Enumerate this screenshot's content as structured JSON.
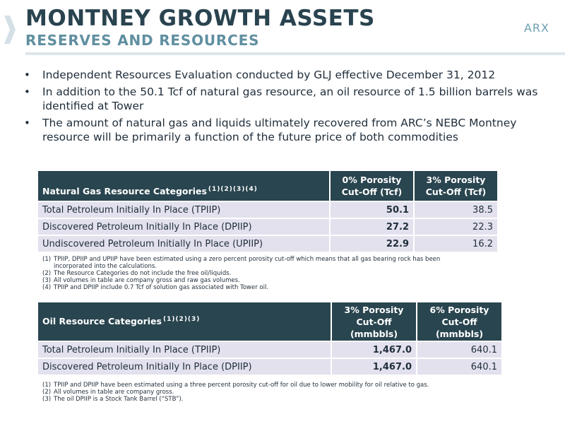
{
  "header": {
    "title": "MONTNEY GROWTH ASSETS",
    "subtitle": "RESERVES AND RESOURCES",
    "logo_text": "ARX"
  },
  "bullets": [
    "Independent Resources Evaluation conducted by GLJ effective December 31, 2012",
    "In addition to the 50.1 Tcf of natural gas resource, an oil resource of 1.5 billion barrels was identified at Tower",
    "The amount of natural gas and liquids ultimately recovered from ARC’s NEBC Montney resource will be primarily a function of the future price of both commodities"
  ],
  "gas_table": {
    "header_label": "Natural Gas Resource Categories",
    "header_refs": "(1)(2)(3)(4)",
    "col1": "0% Porosity Cut-Off (Tcf)",
    "col2": "3% Porosity Cut-Off (Tcf)",
    "rows": [
      {
        "label": "Total Petroleum Initially In Place (TPIIP)",
        "v1": "50.1",
        "v2": "38.5"
      },
      {
        "label": "Discovered Petroleum Initially In Place (DPIIP)",
        "v1": "27.2",
        "v2": "22.3"
      },
      {
        "label": "Undiscovered Petroleum Initially In Place (UPIIP)",
        "v1": "22.9",
        "v2": "16.2"
      }
    ],
    "notes": [
      {
        "num": "(1)",
        "text": "TPIIP, DPIIP and UPIIP have been estimated using a zero percent porosity cut-off which means that all gas bearing rock has been incorporated into the calculations."
      },
      {
        "num": "(2)",
        "text": "The Resource Categories do not include the free oil/liquids."
      },
      {
        "num": "(3)",
        "text": "All volumes in table are company gross and raw gas volumes."
      },
      {
        "num": "(4)",
        "text": "TPIIP and DPIIP include 0.7 Tcf of solution gas associated with Tower oil."
      }
    ]
  },
  "oil_table": {
    "header_label": "Oil Resource Categories",
    "header_refs": "(1)(2)(3)",
    "col1": "3% Porosity Cut-Off (mmbbls)",
    "col2": "6% Porosity Cut-Off (mmbbls)",
    "rows": [
      {
        "label": "Total Petroleum Initially In Place (TPIIP)",
        "v1": "1,467.0",
        "v2": "640.1"
      },
      {
        "label": "Discovered Petroleum Initially In Place (DPIIP)",
        "v1": "1,467.0",
        "v2": "640.1"
      }
    ],
    "notes": [
      {
        "num": "(1)",
        "text": "TPIIP and DPIIP have been estimated using a three percent porosity cut-off for oil due to lower mobility for oil relative to gas."
      },
      {
        "num": "(2)",
        "text": "All volumes in table are company gross."
      },
      {
        "num": "(3)",
        "text": "The oil DPIIP is a Stock Tank Barrel (“STB”)."
      }
    ]
  },
  "colors": {
    "title": "#29434f",
    "subtitle": "#5f8fa0",
    "table_header": "#29454f",
    "table_row": "#e3e1ee",
    "logo": "#6fa0b4"
  }
}
